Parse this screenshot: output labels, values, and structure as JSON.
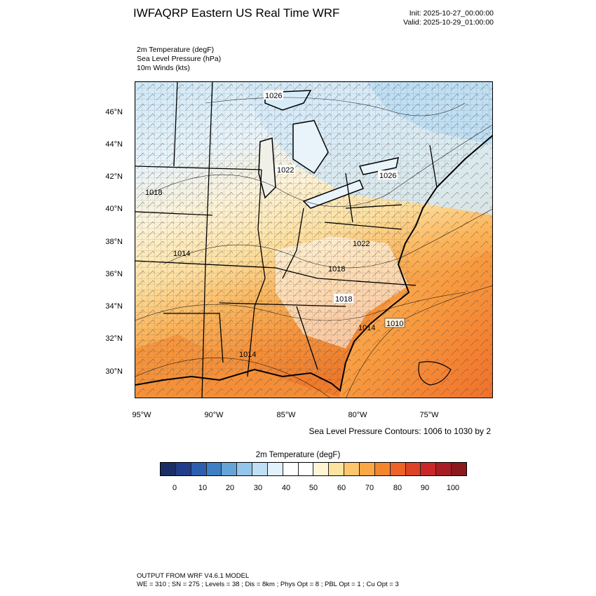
{
  "header": {
    "title": "IWFAQRP Eastern US Real Time WRF",
    "init": "Init: 2025-10-27_00:00:00",
    "valid": "Valid: 2025-10-29_01:00:00"
  },
  "variables": [
    "2m Temperature   (degF)",
    "Sea Level Pressure   (hPa)",
    "10m Winds   (kts)"
  ],
  "map": {
    "lat_labels": [
      "46°N",
      "44°N",
      "42°N",
      "40°N",
      "38°N",
      "36°N",
      "34°N",
      "32°N",
      "30°N"
    ],
    "lon_labels": [
      "95°W",
      "90°W",
      "85°W",
      "80°W",
      "75°W"
    ],
    "pressure_labels": [
      "1026",
      "1022",
      "1026",
      "1018",
      "1014",
      "1022",
      "1018",
      "1018",
      "1014",
      "1010",
      "1014"
    ],
    "contour_note": "Sea Level Pressure Contours: 1006 to 1030 by 2"
  },
  "colorbar": {
    "title": "2m Temperature  (degF)",
    "tick_labels": [
      "0",
      "10",
      "20",
      "30",
      "40",
      "50",
      "60",
      "70",
      "80",
      "90",
      "100"
    ],
    "colors": [
      "#1a2f66",
      "#213e8a",
      "#2e5fae",
      "#3f7fc4",
      "#66a4d8",
      "#93c6ea",
      "#bfe0f4",
      "#e2f1fa",
      "#ffffff",
      "#ffffff",
      "#fff4d3",
      "#fde3a0",
      "#fdc66c",
      "#fba744",
      "#f5862d",
      "#ec6227",
      "#de4326",
      "#c9282a",
      "#a81d25",
      "#8a1a1d"
    ]
  },
  "footer": {
    "line1": "OUTPUT FROM WRF V4.6.1 MODEL",
    "line2": "WE = 310 ; SN = 275 ; Levels = 38 ; Dis = 8km ; Phys Opt = 8 ; PBL Opt = 1 ; Cu Opt = 3"
  }
}
